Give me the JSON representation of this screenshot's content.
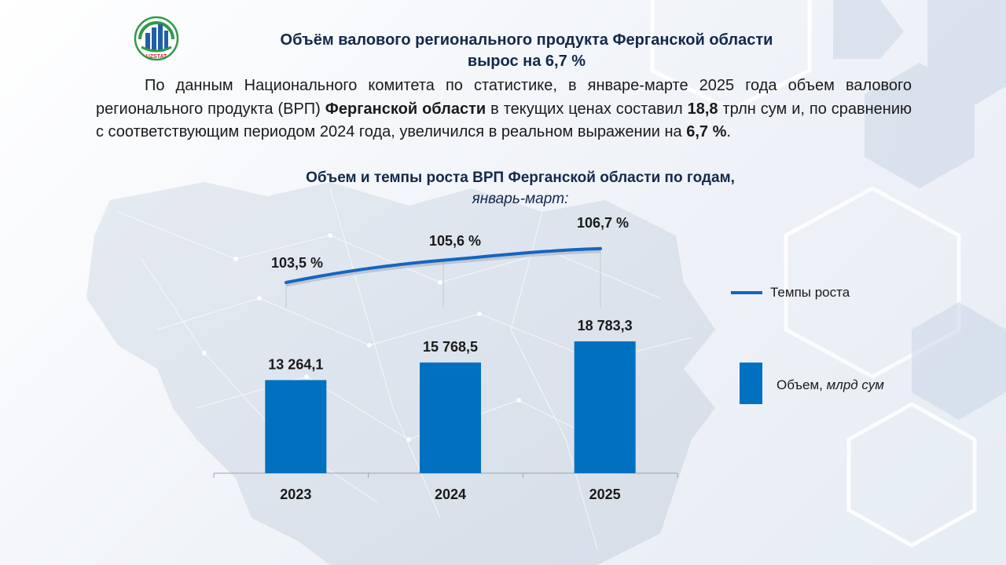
{
  "logo": {
    "text": "UZSTAT"
  },
  "header": {
    "title_line1": "Объём валового регионального продукта Ферганской области",
    "title_line2": "вырос на 6,7 %"
  },
  "paragraph": {
    "part1": "По данным Национального комитета по статистике, в январе-марте 2025 года объем валового регионального продукта (ВРП) ",
    "region": "Ферганской области",
    "part2": " в текущих ценах составил ",
    "value": "18,8",
    "part3": " трлн сум и, по сравнению с соответствующим периодом 2024 года, увеличился в реальном выражении на ",
    "growth": "6,7 %",
    "part4": "."
  },
  "chart_data": {
    "type": "bar",
    "title": "Объем и темпы роста ВРП Ферганской области по годам,",
    "subtitle": "январь-март:",
    "categories": [
      "2023",
      "2024",
      "2025"
    ],
    "series": [
      {
        "name": "Объем, млрд сум",
        "type": "bar",
        "values": [
          13264.1,
          15768.5,
          18783.3
        ],
        "labels": [
          "13 264,1",
          "15 768,5",
          "18 783,3"
        ]
      },
      {
        "name": "Темпы роста",
        "type": "line",
        "values": [
          103.5,
          105.6,
          106.7
        ],
        "labels": [
          "103,5 %",
          "105,6 %",
          "106,7 %"
        ]
      }
    ],
    "legend": {
      "line_label": "Темпы роста",
      "bar_label_normal": "Объем, ",
      "bar_label_italic": "млрд сум"
    },
    "colors": {
      "bar": "#0070c0",
      "line": "#1565c0"
    }
  }
}
